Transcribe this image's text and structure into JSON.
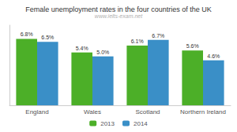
{
  "chart_data": {
    "type": "bar",
    "title": "Female unemployment rates in the four countries of the UK",
    "subtitle": "www.ielts-exam.net",
    "categories": [
      "England",
      "Wales",
      "Scotland",
      "Northern Ireland"
    ],
    "series": [
      {
        "name": "2013",
        "color": "#4caf28",
        "values": [
          6.8,
          5.4,
          6.1,
          5.6
        ],
        "value_labels": [
          "6.8%",
          "5.4%",
          "6.1%",
          "5.6%"
        ]
      },
      {
        "name": "2014",
        "color": "#3a8fc7",
        "values": [
          6.5,
          5.0,
          6.7,
          4.6
        ],
        "value_labels": [
          "6.5%",
          "5.0%",
          "6.7%",
          "4.6%"
        ]
      }
    ],
    "ylim": [
      0,
      8.2
    ],
    "grid": false,
    "legend": "bottom",
    "data_labels": true,
    "tick_labels": "x"
  }
}
